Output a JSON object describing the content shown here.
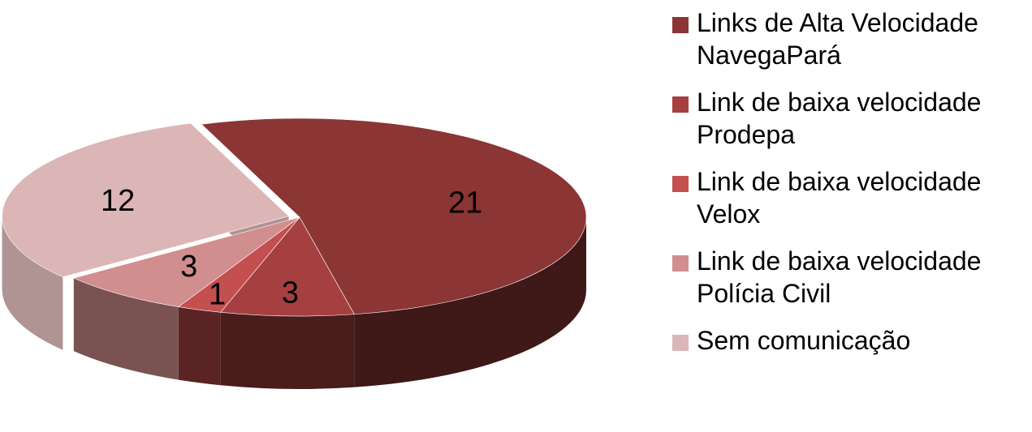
{
  "chart_data": {
    "type": "pie",
    "categories": [
      "Links de Alta Velocidade\nNavegaPará",
      "Link de baixa velocidade\nProdepa",
      "Link de baixa velocidade\nVelox",
      "Link de baixa velocidade\nPolícia Civil",
      "Sem comunicação"
    ],
    "values": [
      21,
      3,
      1,
      3,
      12
    ],
    "data_labels": [
      "21",
      "3",
      "1",
      "3",
      "12"
    ],
    "colors": [
      "#8b3535",
      "#a64040",
      "#c34f4f",
      "#d18e8e",
      "#dcb6b6"
    ],
    "side_colors": [
      "#3f1818",
      "#4a1c1c",
      "#5a2424",
      "#7a5252",
      "#b09393"
    ],
    "exploded_category": "Sem comunicação",
    "legend_position": "right",
    "three_d": true
  }
}
